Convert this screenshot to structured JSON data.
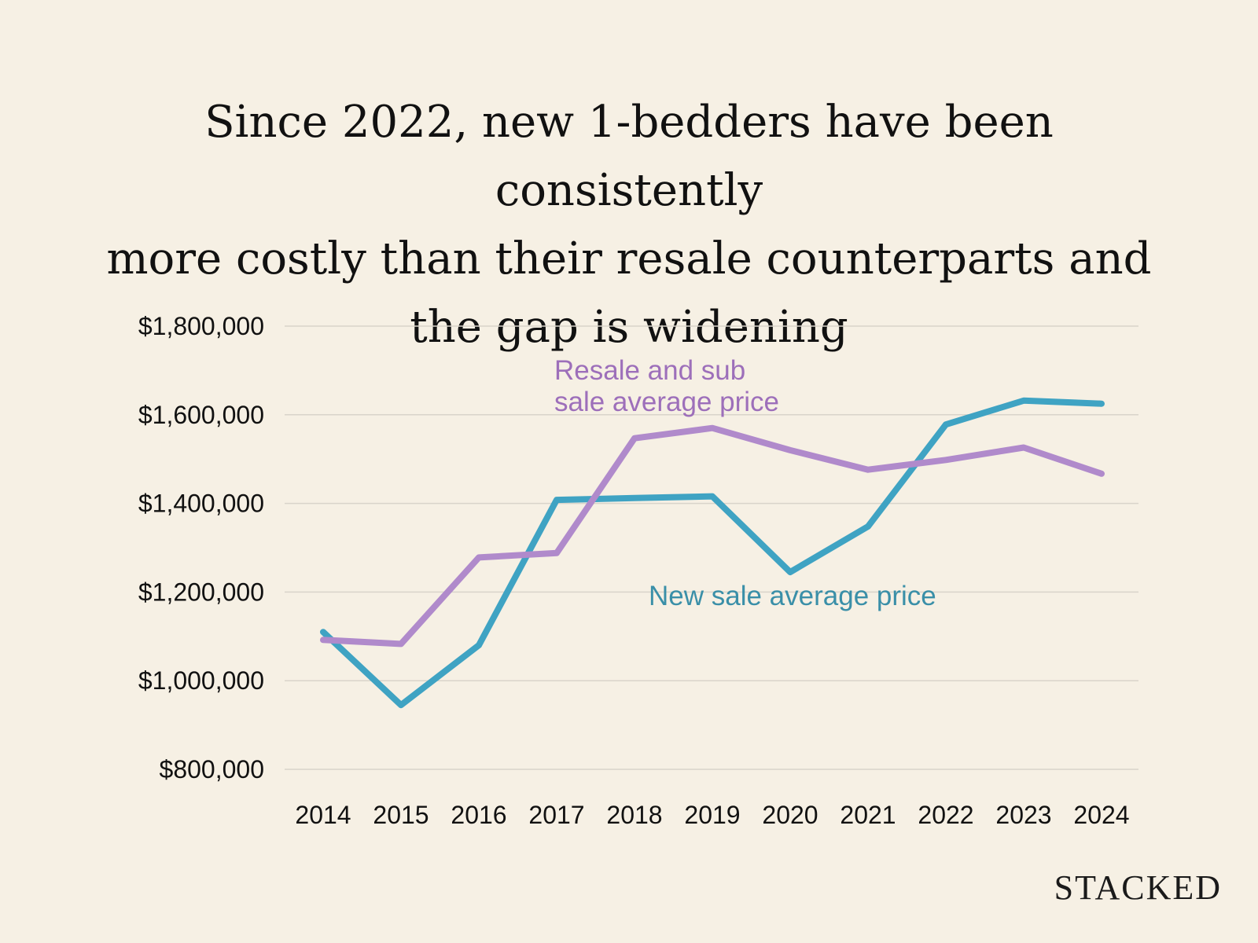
{
  "chart_data": {
    "type": "line",
    "title_lines": [
      "Since 2022, new 1-bedders have been consistently",
      "more costly than their resale counterparts and",
      "the gap is widening"
    ],
    "categories": [
      "2014",
      "2015",
      "2016",
      "2017",
      "2018",
      "2019",
      "2020",
      "2021",
      "2022",
      "2023",
      "2024"
    ],
    "ylim": [
      800000,
      1800000
    ],
    "yticks": [
      800000,
      1000000,
      1200000,
      1400000,
      1600000,
      1800000
    ],
    "ytick_labels": [
      "$800,000",
      "$1,000,000",
      "$1,200,000",
      "$1,400,000",
      "$1,600,000",
      "$1,800,000"
    ],
    "grid": true,
    "series": [
      {
        "name": "New sale average  price",
        "color": "#3fa3c3",
        "label_color": "#3a8fa8",
        "values": [
          1110000,
          945000,
          1080000,
          1408000,
          1412000,
          1416000,
          1245000,
          1348000,
          1578000,
          1632000,
          1625000
        ]
      },
      {
        "name_lines": [
          "Resale and sub",
          "sale average price"
        ],
        "color": "#b08acb",
        "label_color": "#9d6fba",
        "values": [
          1092000,
          1083000,
          1278000,
          1288000,
          1547000,
          1570000,
          1520000,
          1476000,
          1498000,
          1526000,
          1467000
        ]
      }
    ],
    "brand": "STACKED"
  }
}
